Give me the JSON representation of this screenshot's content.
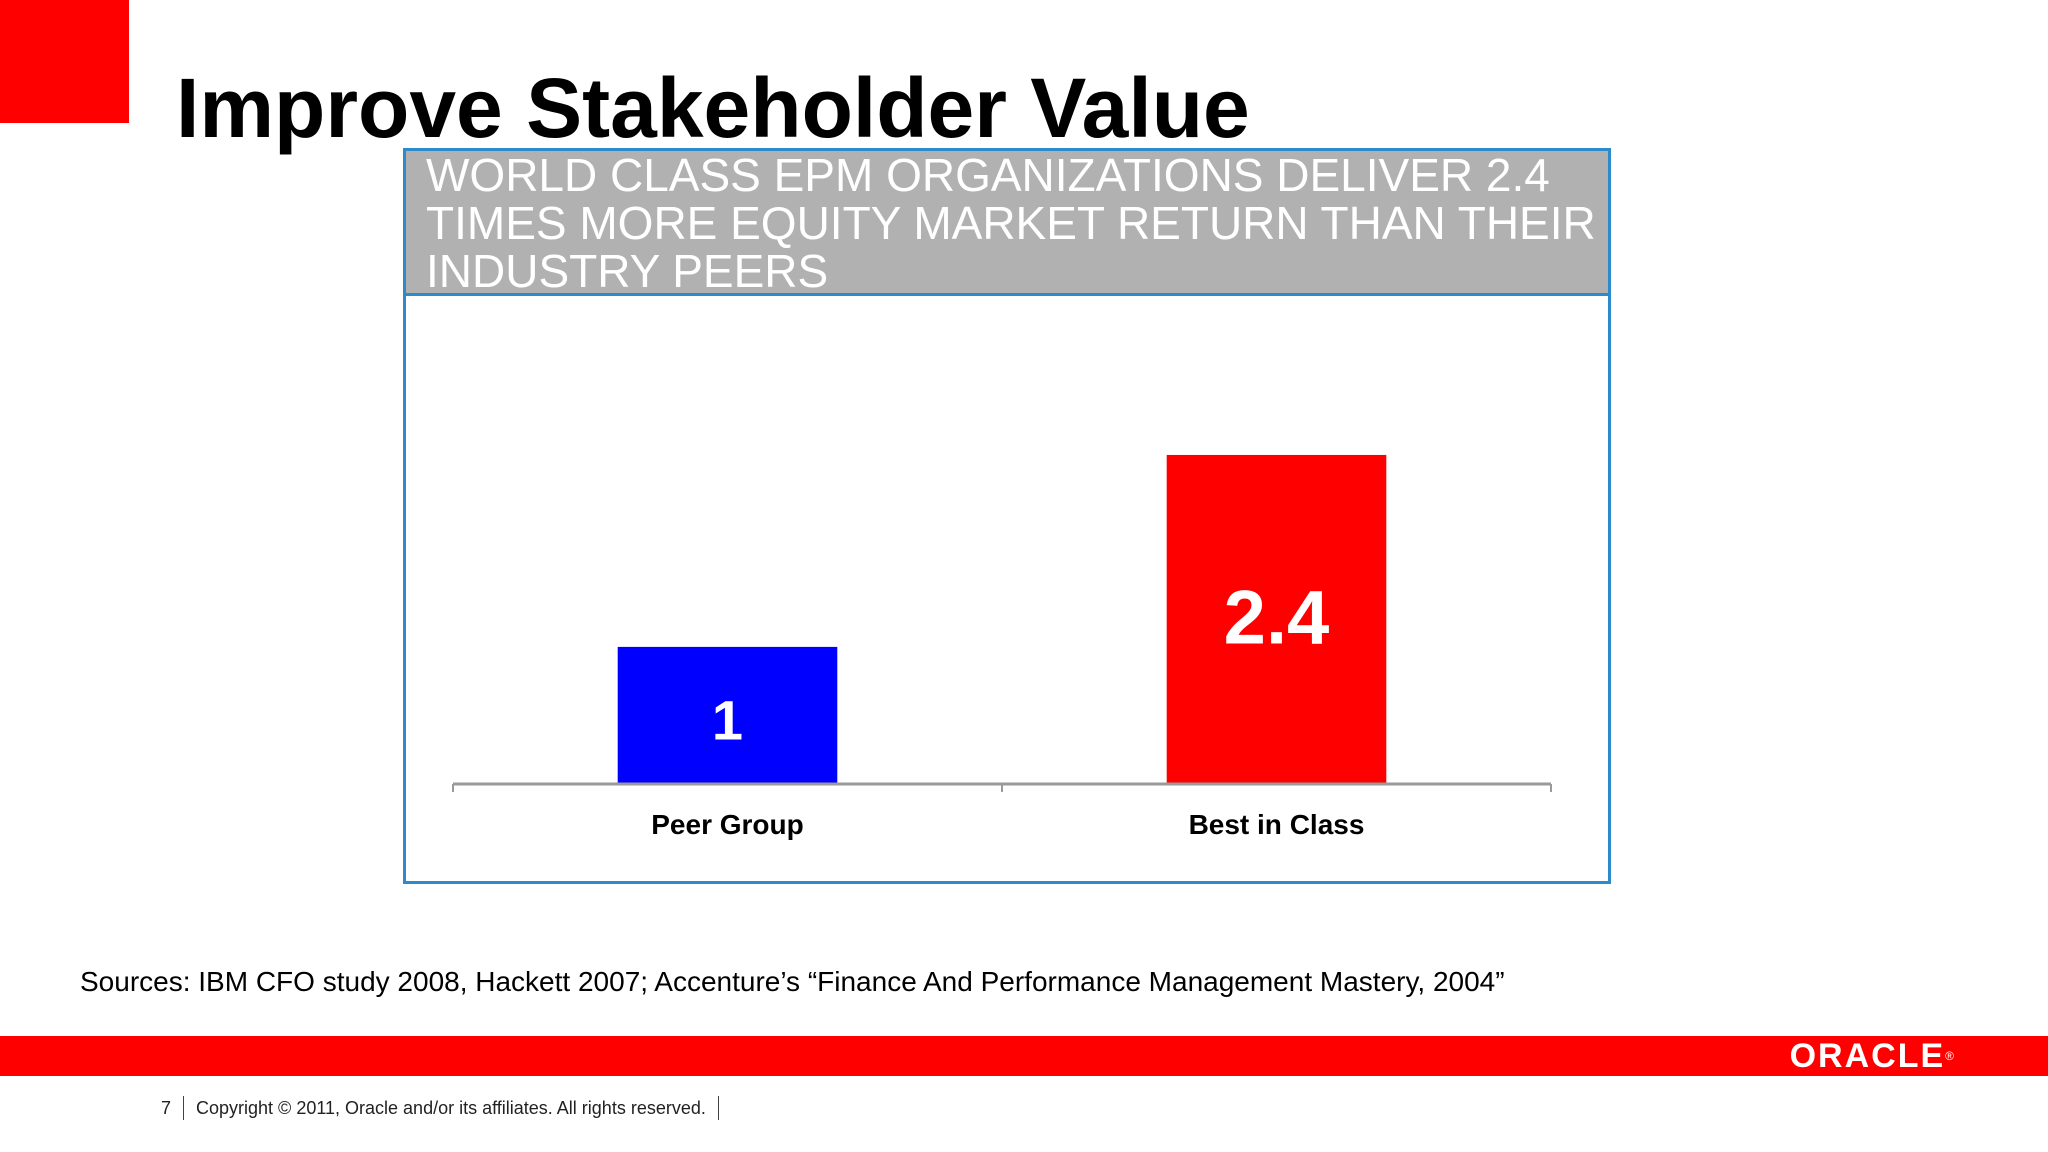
{
  "slide": {
    "title": "Improve Stakeholder Value",
    "sources": "Sources: IBM CFO study 2008, Hackett 2007; Accenture’s “Finance And Performance Management Mastery, 2004”"
  },
  "footer": {
    "page_number": "7",
    "copyright": "Copyright © 2011, Oracle and/or its affiliates. All rights reserved.",
    "logo_text": "ORACLE"
  },
  "colors": {
    "brand_red": "#ff0000",
    "bar_peer": "#0000ff",
    "bar_best": "#ff0000",
    "frame_blue": "#2e8bc9",
    "header_gray": "#b2b1b2"
  },
  "chart_data": {
    "type": "bar",
    "title": "WORLD CLASS EPM ORGANIZATIONS DELIVER 2.4 TIMES MORE EQUITY MARKET RETURN THAN THEIR INDUSTRY PEERS",
    "categories": [
      "Peer Group",
      "Best in Class"
    ],
    "values": [
      1,
      2.4
    ],
    "data_labels": [
      "1",
      "2.4"
    ],
    "colors": [
      "#0000ff",
      "#ff0000"
    ],
    "xlabel": "",
    "ylabel": "",
    "ylim": [
      0,
      3.45
    ],
    "grid": false,
    "legend": "none"
  }
}
